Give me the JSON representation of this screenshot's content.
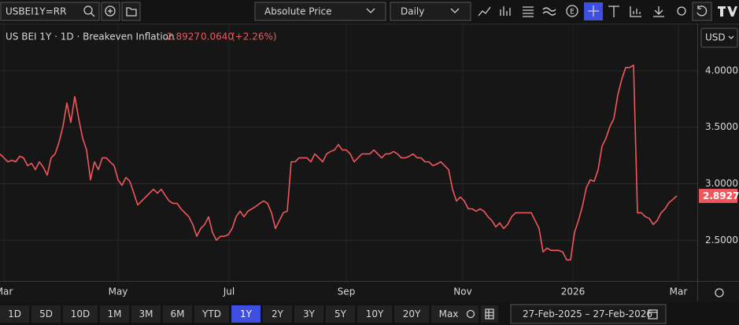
{
  "toolbar": {
    "symbol": "USBEI1Y=RR",
    "price_mode": "Absolute Price",
    "interval": "Daily",
    "currency": "USD"
  },
  "chart_data": {
    "type": "line",
    "title": "US BEI 1Y · 1D · Breakeven Inflation",
    "change": {
      "value": 0.064,
      "label": "0.0640"
    },
    "change_pct": {
      "value": 2.26,
      "label": "(+2.26%)"
    },
    "color": "#f0575c",
    "grid": true,
    "xtick_labels": [
      "Mar",
      "May",
      "Jul",
      "Sep",
      "Nov",
      "2026",
      "Mar"
    ],
    "ylim": [
      2.14,
      4.41
    ],
    "yticks": [
      {
        "value": 2.5,
        "label": "2.5000"
      },
      {
        "value": 3,
        "label": "3.0000"
      },
      {
        "value": 3.5,
        "label": "3.5000"
      },
      {
        "value": 4,
        "label": "4.0000"
      }
    ],
    "values": [
      3.264,
      3.229,
      3.194,
      3.208,
      3.194,
      3.243,
      3.229,
      3.16,
      3.181,
      3.125,
      3.194,
      3.146,
      3.076,
      3.229,
      3.264,
      3.368,
      3.507,
      3.715,
      3.542,
      3.771,
      3.576,
      3.403,
      3.299,
      3.035,
      3.194,
      3.125,
      3.229,
      3.229,
      3.194,
      3.16,
      3.035,
      2.986,
      3.056,
      3.021,
      2.917,
      2.812,
      2.847,
      2.882,
      2.917,
      2.951,
      2.917,
      2.951,
      2.896,
      2.847,
      2.826,
      2.826,
      2.778,
      2.743,
      2.708,
      2.639,
      2.535,
      2.604,
      2.639,
      2.708,
      2.569,
      2.5,
      2.535,
      2.535,
      2.549,
      2.604,
      2.708,
      2.757,
      2.708,
      2.757,
      2.778,
      2.799,
      2.826,
      2.847,
      2.826,
      2.743,
      2.604,
      2.674,
      2.743,
      2.757,
      3.194,
      3.194,
      3.229,
      3.229,
      3.229,
      3.194,
      3.264,
      3.229,
      3.194,
      3.264,
      3.285,
      3.299,
      3.347,
      3.299,
      3.299,
      3.264,
      3.194,
      3.229,
      3.264,
      3.264,
      3.264,
      3.299,
      3.264,
      3.229,
      3.264,
      3.264,
      3.285,
      3.264,
      3.229,
      3.229,
      3.243,
      3.264,
      3.229,
      3.229,
      3.194,
      3.194,
      3.16,
      3.174,
      3.194,
      3.16,
      3.125,
      2.951,
      2.847,
      2.882,
      2.847,
      2.778,
      2.778,
      2.757,
      2.778,
      2.757,
      2.708,
      2.674,
      2.618,
      2.653,
      2.604,
      2.639,
      2.708,
      2.743,
      2.743,
      2.743,
      2.743,
      2.743,
      2.674,
      2.604,
      2.396,
      2.431,
      2.41,
      2.41,
      2.41,
      2.396,
      2.326,
      2.326,
      2.569,
      2.674,
      2.799,
      2.965,
      3.035,
      3.021,
      3.125,
      3.333,
      3.403,
      3.507,
      3.576,
      3.785,
      3.924,
      4.028,
      4.028,
      4.049,
      2.743,
      2.743,
      2.708,
      2.694,
      2.639,
      2.674,
      2.743,
      2.778,
      2.833,
      2.861,
      2.8927
    ]
  },
  "range_bar": {
    "buttons": [
      "1D",
      "5D",
      "10D",
      "1M",
      "3M",
      "6M",
      "YTD",
      "1Y",
      "2Y",
      "3Y",
      "5Y",
      "10Y",
      "20Y",
      "Max"
    ],
    "selected": "1Y",
    "date_range": "27-Feb-2025  –  27-Feb-2026"
  }
}
